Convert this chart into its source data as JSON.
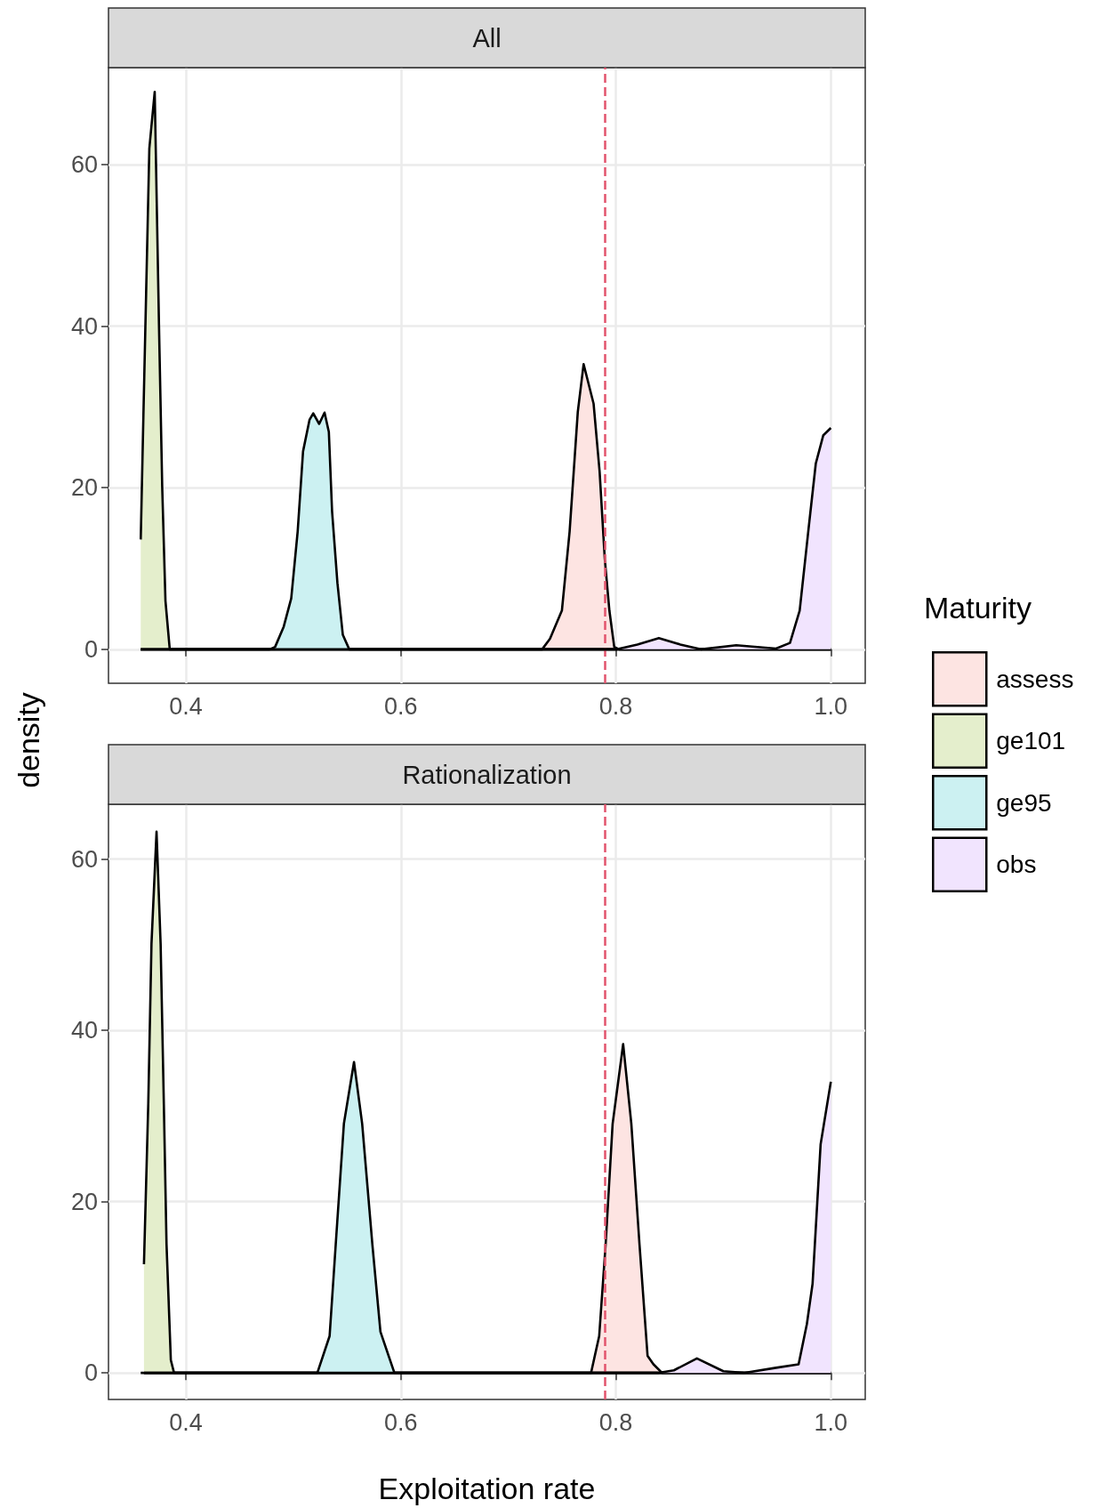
{
  "chart_data": [
    {
      "type": "area",
      "title": "All",
      "ylabel": "density",
      "legend_title": "Maturity",
      "legend": "right",
      "grid": true,
      "xlim": [
        0.328,
        1.032
      ],
      "xticks": [
        0.4,
        0.6,
        0.8,
        {
          "value": 1,
          "label": "1.0"
        }
      ],
      "ylim": [
        -4.2,
        72
      ],
      "yticks": [
        0,
        20,
        40,
        60
      ],
      "ref_lines": [
        {
          "axis": "x",
          "value": 0.79,
          "label": null,
          "color": "#e2546d",
          "line_style": "dashed"
        }
      ],
      "series": [
        {
          "name": "assess",
          "color": "#fde4e2",
          "x": [
            0.358,
            0.7314,
            0.7387,
            0.7498,
            0.757,
            0.7646,
            0.77,
            0.7793,
            0.7849,
            0.7897,
            0.794,
            0.7985,
            0.803,
            1.0
          ],
          "values": [
            0,
            0,
            1.3,
            4.8,
            14.6,
            29.4,
            35.3,
            30.4,
            22,
            11.2,
            4.8,
            0.3,
            0,
            0
          ]
        },
        {
          "name": "ge101",
          "color": "#e4eecc",
          "x": [
            0.358,
            0.3605,
            0.363,
            0.366,
            0.371,
            0.375,
            0.378,
            0.381,
            0.385,
            1.0
          ],
          "values": [
            13.6,
            29,
            44,
            62,
            69,
            40,
            20,
            6,
            0,
            0
          ]
        },
        {
          "name": "ge95",
          "color": "#ccf1f2",
          "x": [
            0.358,
            0.478,
            0.483,
            0.491,
            0.498,
            0.504,
            0.509,
            0.515,
            0.5185,
            0.524,
            0.529,
            0.533,
            0.536,
            0.541,
            0.546,
            0.552,
            1.0
          ],
          "values": [
            0,
            0,
            0.3,
            2.8,
            6.3,
            14.6,
            24.5,
            28.4,
            29.2,
            27.9,
            29.3,
            26.9,
            17.1,
            8.2,
            1.8,
            0,
            0
          ]
        },
        {
          "name": "obs",
          "color": "#f1e4fe",
          "x": [
            0.358,
            0.801,
            0.82,
            0.84,
            0.86,
            0.879,
            0.912,
            0.949,
            0.962,
            0.971,
            0.979,
            0.986,
            0.993,
            1.0
          ],
          "values": [
            0,
            0,
            0.6,
            1.4,
            0.6,
            0,
            0.5,
            0.1,
            0.8,
            4.8,
            14.6,
            23,
            26.5,
            27.4
          ]
        }
      ]
    },
    {
      "type": "area",
      "title": "Rationalization",
      "xlabel": "Exploitation rate",
      "grid": true,
      "xlim": [
        0.328,
        1.032
      ],
      "xticks": [
        0.4,
        0.6,
        0.8,
        {
          "value": 1,
          "label": "1.0"
        }
      ],
      "ylim": [
        -3.1,
        66.4
      ],
      "yticks": [
        0,
        20,
        40,
        60
      ],
      "ref_lines": [
        {
          "axis": "x",
          "value": 0.79,
          "label": null,
          "color": "#e2546d",
          "line_style": "dashed"
        }
      ],
      "series": [
        {
          "color": "#fde4e2",
          "x": [
            0.358,
            0.7769,
            0.7845,
            0.7905,
            0.797,
            0.8068,
            0.8144,
            0.822,
            0.8295,
            0.835,
            0.843,
            1.0
          ],
          "values": [
            0,
            0,
            4.3,
            15,
            29.1,
            38.4,
            29.1,
            15,
            2,
            1,
            0,
            0
          ]
        },
        {
          "color": "#e4eecc",
          "x": [
            0.361,
            0.365,
            0.368,
            0.3727,
            0.3765,
            0.3795,
            0.382,
            0.386,
            0.389,
            1.0
          ],
          "values": [
            12.7,
            31.4,
            50.1,
            63.2,
            50.1,
            31.4,
            15,
            1.5,
            0,
            0
          ]
        },
        {
          "color": "#ccf1f2",
          "x": [
            0.361,
            0.5223,
            0.5337,
            0.5394,
            0.547,
            0.5564,
            0.564,
            0.5735,
            0.581,
            0.594,
            1.0
          ],
          "values": [
            0,
            0,
            4.3,
            15,
            29.1,
            36.3,
            29.1,
            15,
            4.8,
            0,
            0
          ]
        },
        {
          "color": "#f1e4fe",
          "x": [
            0.361,
            0.839,
            0.854,
            0.8754,
            0.9,
            0.919,
            0.949,
            0.97,
            0.9777,
            0.983,
            0.9905,
            1.0
          ],
          "values": [
            0,
            0,
            0.3,
            1.7,
            0.2,
            0,
            0.6,
            1,
            5.7,
            10.4,
            26.7,
            34
          ]
        }
      ]
    }
  ]
}
